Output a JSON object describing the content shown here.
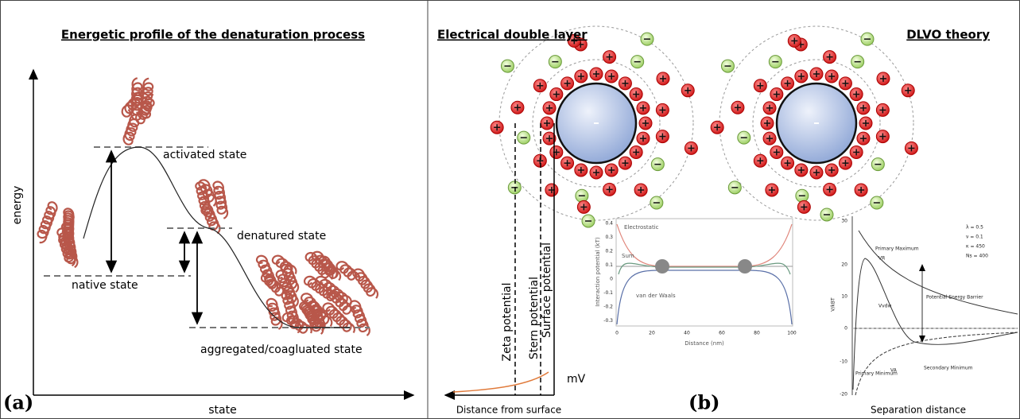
{
  "panel_a": {
    "label": "(a)",
    "title": "Energetic profile of the denaturation process",
    "y_axis_label": "energy",
    "x_axis_label": "state",
    "states": [
      "activated state",
      "denatured state",
      "native state",
      "aggregated/coagluated state"
    ]
  },
  "panel_b": {
    "label": "(b)",
    "titles": [
      "Electrical double layer",
      "DLVO theory"
    ],
    "potentials": [
      "Zeta potential",
      "Stern potential",
      "Surface potential"
    ],
    "unit": "mV",
    "x_axis_label": "Distance from surface",
    "inset_1": {
      "curves": [
        "Electrostatic",
        "Sum",
        "van der Waals"
      ],
      "y_axis_label": "Interaction potential (kT)",
      "x_axis_label": "Distance (nm)",
      "yticks": [
        "0.4",
        "0.3",
        "0.2",
        "0.1",
        "0",
        "-0.1",
        "-0.2",
        "-0.3"
      ],
      "xticks": [
        "0",
        "20",
        "40",
        "60",
        "80",
        "100"
      ]
    },
    "inset_2": {
      "y_axis_label": "V/kBT",
      "yticks": [
        "30",
        "20",
        "10",
        "0",
        "-10",
        "-20"
      ],
      "annotations": [
        "Primary Maximum",
        "VR",
        "Potential Energy Barrier",
        "Vvdw",
        "Secondary Minimum",
        "VA",
        "Primary Minimum"
      ],
      "parameters": [
        "λ = 0.5",
        "ν = 0.1",
        "κ = 450",
        "Ns = 400"
      ],
      "x_axis_label": "Separation distance"
    }
  }
}
